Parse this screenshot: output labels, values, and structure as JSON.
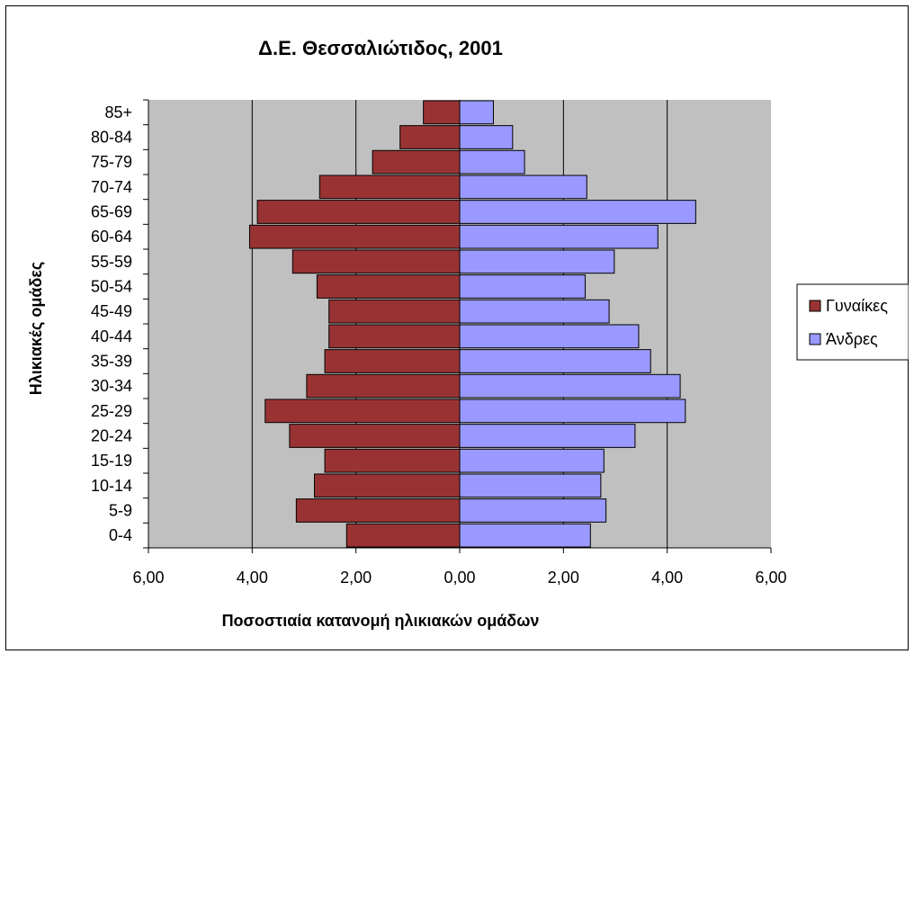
{
  "chart_data": {
    "type": "bar",
    "orientation": "horizontal",
    "title": "Δ.Ε. Θεσσαλιώτιδος, 2001",
    "xlabel": "Ποσοστιαία κατανομή ηλικιακών ομάδων",
    "ylabel": "Ηλικιακές ομάδες",
    "xlim": [
      -6,
      6
    ],
    "xticks": [
      -6,
      -4,
      -2,
      0,
      2,
      4,
      6
    ],
    "xtick_labels": [
      "6,00",
      "4,00",
      "2,00",
      "0,00",
      "2,00",
      "4,00",
      "6,00"
    ],
    "grid": "vertical",
    "legend_position": "right",
    "categories": [
      "0-4",
      "5-9",
      "10-14",
      "15-19",
      "20-24",
      "25-29",
      "30-34",
      "35-39",
      "40-44",
      "45-49",
      "50-54",
      "55-59",
      "60-64",
      "65-69",
      "70-74",
      "75-79",
      "80-84",
      "85+"
    ],
    "series": [
      {
        "name": "Γυναίκες",
        "side": "left",
        "color": "#993333",
        "values": [
          2.18,
          3.15,
          2.8,
          2.6,
          3.28,
          3.75,
          2.95,
          2.6,
          2.52,
          2.52,
          2.75,
          3.22,
          4.05,
          3.9,
          2.7,
          1.68,
          1.15,
          0.7
        ]
      },
      {
        "name": "Άνδρες",
        "side": "right",
        "color": "#9999FF",
        "values": [
          2.52,
          2.82,
          2.72,
          2.78,
          3.38,
          4.35,
          4.25,
          3.68,
          3.45,
          2.88,
          2.42,
          2.98,
          3.82,
          4.55,
          2.45,
          1.25,
          1.02,
          0.65
        ]
      }
    ],
    "colors": {
      "plot_background": "#C0C0C0",
      "grid": "#000000",
      "bar_border": "#000000"
    }
  }
}
